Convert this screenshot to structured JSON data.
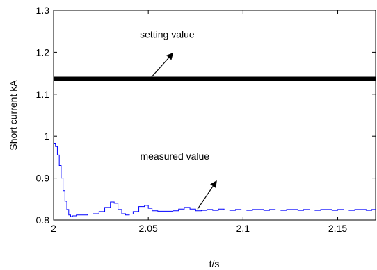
{
  "chart_data": {
    "type": "line",
    "xlabel": "t/s",
    "ylabel": "Short current kA",
    "xlim": [
      2.0,
      2.17
    ],
    "ylim": [
      0.8,
      1.3
    ],
    "xticks": [
      2,
      2.05,
      2.1,
      2.15
    ],
    "xtick_labels": [
      "2",
      "2.05",
      "2.1",
      "2.15"
    ],
    "yticks": [
      0.8,
      0.9,
      1.0,
      1.1,
      1.2,
      1.3
    ],
    "ytick_labels": [
      "0.8",
      "0.9",
      "1",
      "1.1",
      "1.2",
      "1.3"
    ],
    "grid": false,
    "series": [
      {
        "color": "#000000",
        "style": "thick-solid",
        "x": [
          2.0,
          2.17
        ],
        "y": [
          1.137,
          1.137
        ]
      },
      {
        "color": "#0000ff",
        "style": "thin-stepped",
        "x": [
          2.0,
          2.001,
          2.002,
          2.003,
          2.004,
          2.005,
          2.006,
          2.007,
          2.008,
          2.009,
          2.01,
          2.012,
          2.015,
          2.018,
          2.021,
          2.024,
          2.027,
          2.03,
          2.032,
          2.034,
          2.036,
          2.038,
          2.04,
          2.042,
          2.045,
          2.048,
          2.05,
          2.052,
          2.055,
          2.058,
          2.06,
          2.063,
          2.066,
          2.069,
          2.072,
          2.075,
          2.078,
          2.081,
          2.084,
          2.087,
          2.09,
          2.093,
          2.096,
          2.099,
          2.102,
          2.105,
          2.108,
          2.111,
          2.114,
          2.117,
          2.12,
          2.123,
          2.126,
          2.129,
          2.132,
          2.135,
          2.138,
          2.141,
          2.144,
          2.147,
          2.15,
          2.153,
          2.156,
          2.159,
          2.162,
          2.165,
          2.168,
          2.17
        ],
        "y": [
          0.983,
          0.975,
          0.955,
          0.93,
          0.9,
          0.87,
          0.845,
          0.825,
          0.812,
          0.808,
          0.81,
          0.812,
          0.812,
          0.814,
          0.815,
          0.82,
          0.83,
          0.843,
          0.84,
          0.825,
          0.815,
          0.812,
          0.814,
          0.82,
          0.832,
          0.835,
          0.828,
          0.822,
          0.821,
          0.821,
          0.821,
          0.822,
          0.826,
          0.83,
          0.826,
          0.822,
          0.823,
          0.825,
          0.823,
          0.826,
          0.824,
          0.823,
          0.825,
          0.824,
          0.823,
          0.825,
          0.825,
          0.823,
          0.825,
          0.824,
          0.823,
          0.825,
          0.825,
          0.823,
          0.825,
          0.824,
          0.823,
          0.825,
          0.825,
          0.823,
          0.825,
          0.824,
          0.823,
          0.825,
          0.825,
          0.823,
          0.825,
          0.824
        ]
      }
    ],
    "annotations": [
      {
        "text": "setting value",
        "text_x": 2.06,
        "text_y": 1.235,
        "arrow_from": [
          2.0515,
          1.14
        ],
        "arrow_to": [
          2.063,
          1.198
        ]
      },
      {
        "text": "measured value",
        "text_x": 2.064,
        "text_y": 0.944,
        "arrow_from": [
          2.076,
          0.826
        ],
        "arrow_to": [
          2.086,
          0.893
        ]
      }
    ]
  }
}
